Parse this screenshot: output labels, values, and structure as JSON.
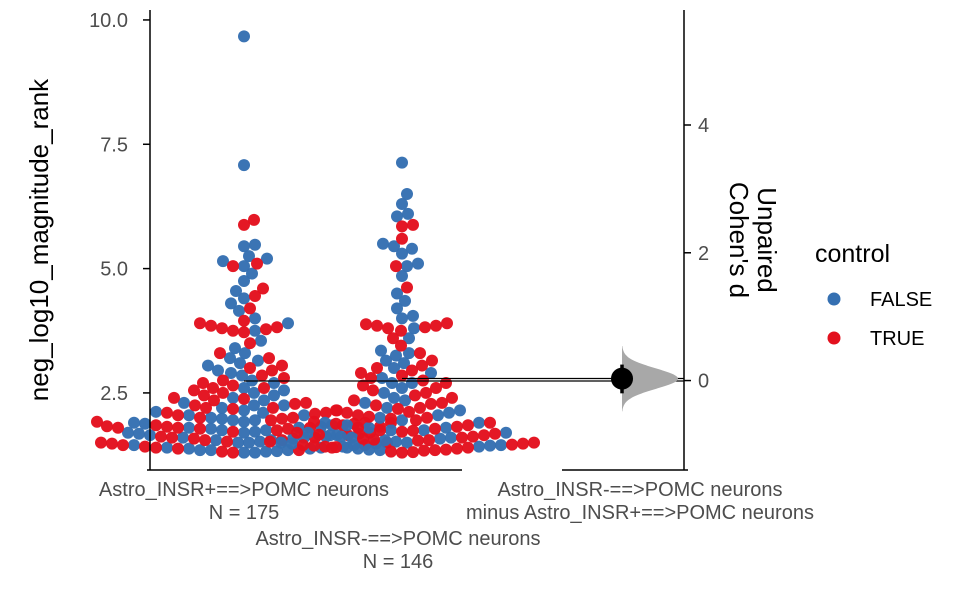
{
  "chart_data": {
    "type": "scatter",
    "subtype": "estimation-plot (Gardner-Altman swarm + effect size)",
    "ylabel": "neg_log10_magnitude_rank",
    "ylim": [
      0.95,
      10.2
    ],
    "yticks": [
      "2.5",
      "5.0",
      "7.5",
      "10.0"
    ],
    "ylabel_right": [
      "Unpaired",
      "Cohen's d"
    ],
    "ylim_right": [
      -1.4,
      5.8
    ],
    "yticks_right": [
      "0",
      "2",
      "4"
    ],
    "legend": {
      "title": "control",
      "position": "right",
      "entries": [
        {
          "label": "FALSE",
          "color": "#3570B2"
        },
        {
          "label": "TRUE",
          "color": "#E3111E"
        }
      ]
    },
    "groups": [
      {
        "name": "Astro_INSR+==>POMC neurons",
        "n_label": "N = 175",
        "mean": 2.74,
        "false_values": [
          9.67,
          7.08,
          5.48,
          5.45,
          5.25,
          5.2,
          5.15,
          5.05,
          4.9,
          4.75,
          4.55,
          4.4,
          4.3,
          4.15,
          4.0,
          3.9,
          3.75,
          3.55,
          3.4,
          3.3,
          3.2,
          3.15,
          3.1,
          3.05,
          2.95,
          2.9,
          2.85,
          2.75,
          2.7,
          2.6,
          2.55,
          2.5,
          2.45,
          2.4,
          2.35,
          2.3,
          2.25,
          2.2,
          2.15,
          2.12,
          2.1,
          2.05,
          2.0,
          1.98,
          1.95,
          1.92,
          1.9,
          1.88,
          1.85,
          1.82,
          1.8,
          1.78,
          1.75,
          1.72,
          1.7,
          1.68,
          1.65,
          1.62,
          1.6,
          1.6,
          1.58,
          1.55,
          1.55,
          1.52,
          1.5,
          1.5,
          1.48,
          1.45,
          1.45,
          1.42,
          1.4,
          1.4,
          1.38,
          1.38,
          1.35,
          1.35,
          1.35,
          1.33,
          1.32,
          1.3,
          1.3,
          1.65,
          1.7,
          1.75,
          1.8,
          2.05,
          2.25,
          1.95
        ],
        "true_values": [
          5.98,
          5.88,
          5.1,
          5.05,
          4.6,
          4.45,
          4.2,
          3.95,
          3.9,
          3.85,
          3.82,
          3.8,
          3.78,
          3.75,
          3.72,
          3.5,
          3.3,
          3.05,
          2.95,
          2.85,
          2.8,
          2.75,
          2.7,
          2.65,
          2.6,
          2.55,
          2.5,
          2.45,
          2.4,
          2.38,
          2.35,
          2.3,
          2.28,
          2.25,
          2.2,
          2.18,
          2.15,
          2.1,
          2.08,
          2.05,
          2.0,
          1.98,
          1.95,
          1.92,
          1.9,
          1.88,
          1.85,
          1.83,
          1.82,
          1.8,
          1.8,
          1.78,
          1.78,
          1.75,
          1.72,
          1.7,
          1.68,
          1.65,
          1.62,
          1.6,
          1.58,
          1.55,
          1.52,
          1.5,
          1.48,
          1.45,
          1.42,
          1.4,
          1.38,
          1.35,
          1.32,
          1.3,
          1.85,
          1.82,
          1.8,
          1.6,
          1.55,
          1.5,
          1.45,
          1.4,
          2.6,
          2.2,
          2.0,
          1.9,
          3.0,
          3.2,
          2.1
        ]
      },
      {
        "name": "Astro_INSR-==>POMC neurons",
        "n_label": "N = 146",
        "mean": 2.79,
        "false_values": [
          7.13,
          6.5,
          6.3,
          6.1,
          6.05,
          5.5,
          5.45,
          5.4,
          5.3,
          5.1,
          5.05,
          4.85,
          4.5,
          4.35,
          4.2,
          4.05,
          4.0,
          3.8,
          3.6,
          3.35,
          3.3,
          3.25,
          3.15,
          3.0,
          2.9,
          2.8,
          2.7,
          2.6,
          2.5,
          2.4,
          2.3,
          2.2,
          2.1,
          2.0,
          1.95,
          1.9,
          1.85,
          1.8,
          1.75,
          1.7,
          1.65,
          1.6,
          1.55,
          1.5,
          1.45,
          1.4,
          1.38,
          1.35,
          1.6,
          1.7,
          1.8,
          1.5,
          1.9,
          2.05,
          2.15,
          2.35,
          1.62,
          1.48,
          1.42,
          1.75,
          2.7,
          3.1,
          1.58,
          1.52,
          1.36,
          1.44
        ],
        "true_values": [
          5.88,
          5.85,
          5.6,
          5.05,
          4.62,
          3.9,
          3.88,
          3.85,
          3.85,
          3.82,
          3.8,
          3.75,
          3.6,
          3.45,
          3.3,
          3.05,
          3.0,
          2.95,
          2.9,
          2.85,
          2.8,
          2.75,
          2.7,
          2.65,
          2.6,
          2.55,
          2.45,
          2.4,
          2.35,
          2.3,
          2.25,
          2.2,
          2.15,
          2.12,
          2.1,
          2.05,
          2.0,
          1.95,
          1.9,
          1.85,
          1.82,
          1.8,
          1.75,
          1.72,
          1.7,
          1.65,
          1.6,
          1.58,
          1.55,
          1.5,
          1.48,
          1.45,
          1.42,
          1.4,
          1.38,
          1.35,
          1.32,
          1.3,
          1.78,
          1.68,
          1.62,
          1.52,
          1.46,
          1.34,
          1.88,
          2.02,
          2.28,
          2.5,
          1.92,
          1.74,
          1.56,
          1.44,
          1.36,
          1.31,
          2.18,
          1.98,
          3.15,
          1.66,
          1.54,
          1.41
        ]
      }
    ],
    "effect_size": {
      "label": [
        "Astro_INSR-==>POMC neurons",
        "minus Astro_INSR+==>POMC neurons"
      ],
      "value": 0.03,
      "ci": [
        -0.2,
        0.25
      ],
      "bootstrap_sd": 0.16
    }
  }
}
